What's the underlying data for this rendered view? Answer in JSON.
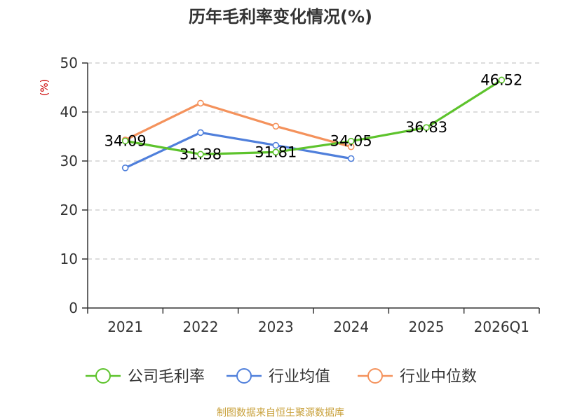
{
  "chart_data": {
    "type": "line",
    "title": "历年毛利率变化情况(%)",
    "ylabel": "(%)",
    "xlabel": "",
    "ylim": [
      0,
      50
    ],
    "yticks": [
      0,
      10,
      20,
      30,
      40,
      50
    ],
    "categories": [
      "2021",
      "2022",
      "2023",
      "2024",
      "2025",
      "2026Q1"
    ],
    "grid": true,
    "legend_position": "bottom",
    "series": [
      {
        "name": "公司毛利率",
        "color": "#5dc32c",
        "values": [
          34.09,
          31.38,
          31.81,
          34.05,
          36.83,
          46.52
        ],
        "labels": [
          "34.09",
          "31.38",
          "31.81",
          "34.05",
          "36.83",
          "46.52"
        ]
      },
      {
        "name": "行业均值",
        "color": "#4f7fdb",
        "values": [
          28.6,
          35.8,
          33.2,
          30.5,
          null,
          null
        ]
      },
      {
        "name": "行业中位数",
        "color": "#f4925c",
        "values": [
          34.3,
          41.8,
          37.1,
          32.9,
          null,
          null
        ]
      }
    ],
    "ylabel_color": "#cc0000",
    "source": "制图数据来自恒生聚源数据库"
  }
}
